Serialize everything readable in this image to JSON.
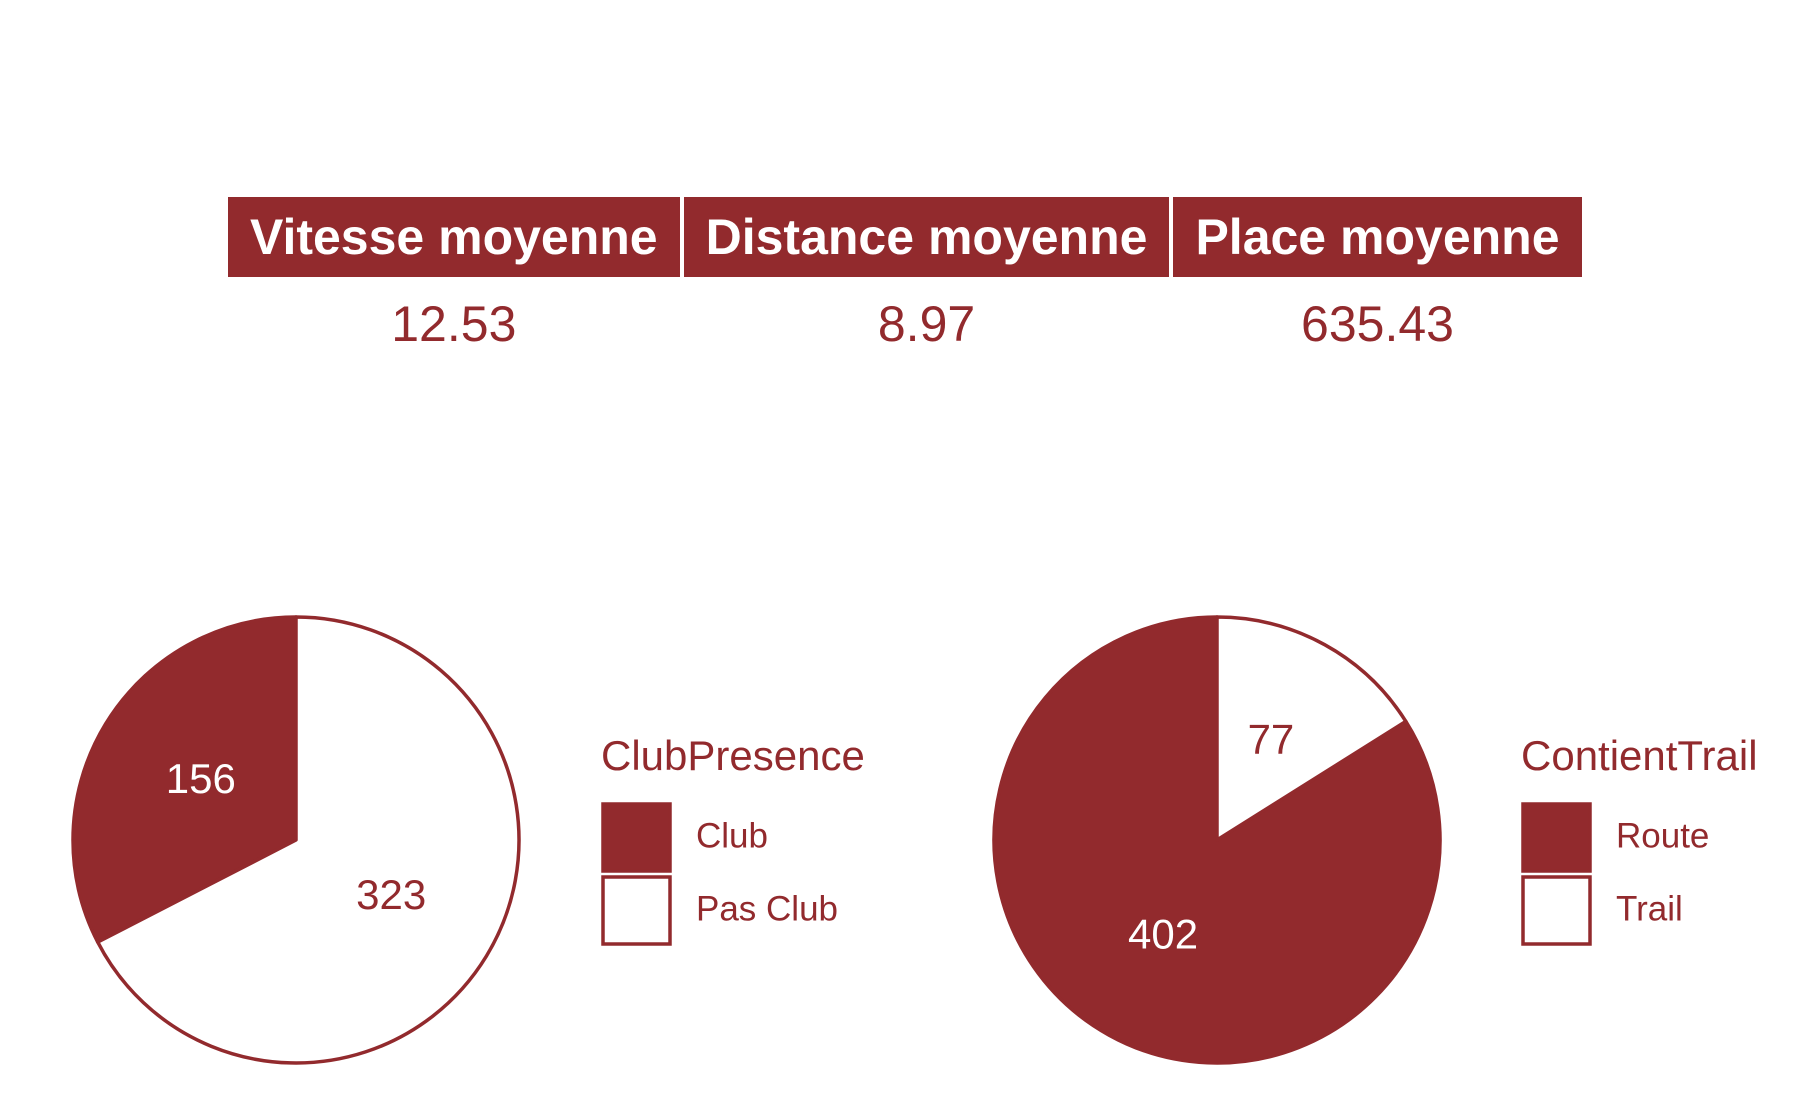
{
  "colors": {
    "accent": "#922a2d",
    "background": "#ffffff"
  },
  "summary_table": {
    "headers": [
      "Vitesse moyenne",
      "Distance moyenne",
      "Place moyenne"
    ],
    "values": [
      "12.53",
      "8.97",
      "635.43"
    ]
  },
  "chart_data": [
    {
      "type": "pie",
      "legend_title": "ClubPresence",
      "legend_position": "right",
      "slices": [
        {
          "label": "Club",
          "value": 156,
          "fill": "#922a2d",
          "label_color": "#ffffff"
        },
        {
          "label": "Pas Club",
          "value": 323,
          "fill": "#ffffff",
          "label_color": "#922a2d"
        }
      ]
    },
    {
      "type": "pie",
      "legend_title": "ContientTrail",
      "legend_position": "right",
      "slices": [
        {
          "label": "Route",
          "value": 402,
          "fill": "#922a2d",
          "label_color": "#ffffff"
        },
        {
          "label": "Trail",
          "value": 77,
          "fill": "#ffffff",
          "label_color": "#922a2d"
        }
      ]
    }
  ]
}
